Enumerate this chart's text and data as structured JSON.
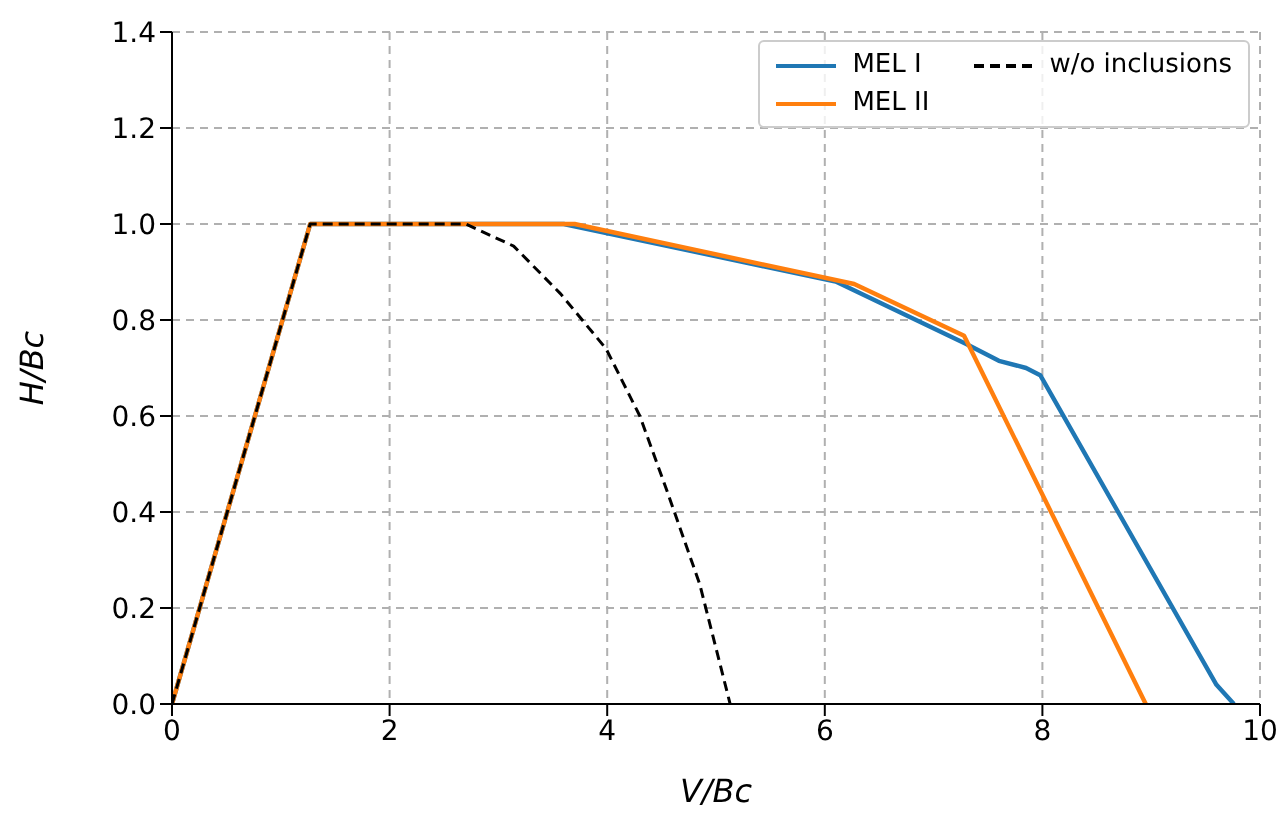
{
  "chart_data": {
    "type": "line",
    "xlabel": "V/Bc",
    "ylabel": "H/Bc",
    "xlim": [
      0,
      10
    ],
    "ylim": [
      0,
      1.4
    ],
    "xticks": [
      0,
      2,
      4,
      6,
      8,
      10
    ],
    "yticks": [
      {
        "value": 0,
        "label": "0.0"
      },
      {
        "value": 0.2,
        "label": "0.2"
      },
      {
        "value": 0.4,
        "label": "0.4"
      },
      {
        "value": 0.6,
        "label": "0.6"
      },
      {
        "value": 0.8,
        "label": "0.8"
      },
      {
        "value": 1.0,
        "label": "1.0"
      },
      {
        "value": 1.2,
        "label": "1.2"
      },
      {
        "value": 1.4,
        "label": "1.4"
      }
    ],
    "grid": true,
    "legend": "top right",
    "marker": "none",
    "series": [
      {
        "name": "MEL I",
        "color": "#1f77b4",
        "line_style": "solid",
        "x": [
          0,
          1.27,
          3.6,
          6.1,
          7.3,
          7.6,
          7.85,
          7.98,
          9.6,
          9.76
        ],
        "values": [
          0,
          1.0,
          1.0,
          0.88,
          0.75,
          0.715,
          0.7,
          0.685,
          0.04,
          0
        ]
      },
      {
        "name": "MEL II",
        "color": "#ff7f0e",
        "line_style": "solid",
        "x": [
          0,
          1.27,
          3.7,
          6.27,
          7.28,
          8.95
        ],
        "values": [
          0,
          1.0,
          1.0,
          0.875,
          0.767,
          0
        ]
      },
      {
        "name": "w/o inclusions",
        "color": "#000000",
        "line_style": "dashed",
        "x": [
          0,
          1.27,
          2.7,
          3.14,
          3.57,
          3.99,
          4.3,
          4.54,
          4.85,
          5.13
        ],
        "values": [
          0,
          1.0,
          1.0,
          0.954,
          0.855,
          0.74,
          0.6,
          0.45,
          0.25,
          0
        ]
      }
    ]
  }
}
